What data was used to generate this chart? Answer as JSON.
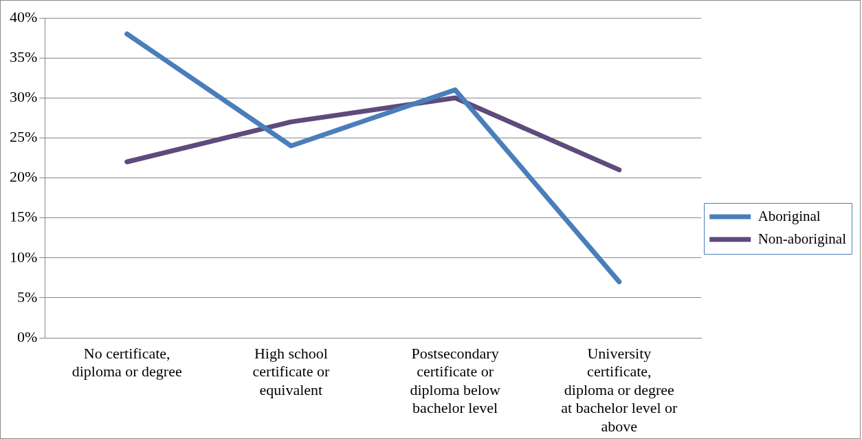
{
  "chart_data": {
    "type": "line",
    "categories": [
      "No certificate, diploma or degree",
      "High school certificate or equivalent",
      "Postsecondary certificate or diploma below bachelor level",
      "University certificate, diploma or degree at bachelor level or above"
    ],
    "series": [
      {
        "name": "Aboriginal",
        "color": "#4a7ebb",
        "values": [
          38,
          24,
          31,
          7
        ]
      },
      {
        "name": "Non-aboriginal",
        "color": "#5e4a7c",
        "values": [
          22,
          27,
          30,
          21
        ]
      }
    ],
    "ylim": [
      0,
      40
    ],
    "yticks": [
      {
        "value": 0,
        "label": "0%"
      },
      {
        "value": 5,
        "label": "5%"
      },
      {
        "value": 10,
        "label": "10%"
      },
      {
        "value": 15,
        "label": "15%"
      },
      {
        "value": 20,
        "label": "20%"
      },
      {
        "value": 25,
        "label": "25%"
      },
      {
        "value": 30,
        "label": "30%"
      },
      {
        "value": 35,
        "label": "35%"
      },
      {
        "value": 40,
        "label": "40%"
      }
    ],
    "grid": "y",
    "legend": "right",
    "marker": "none",
    "line_style": "solid"
  }
}
